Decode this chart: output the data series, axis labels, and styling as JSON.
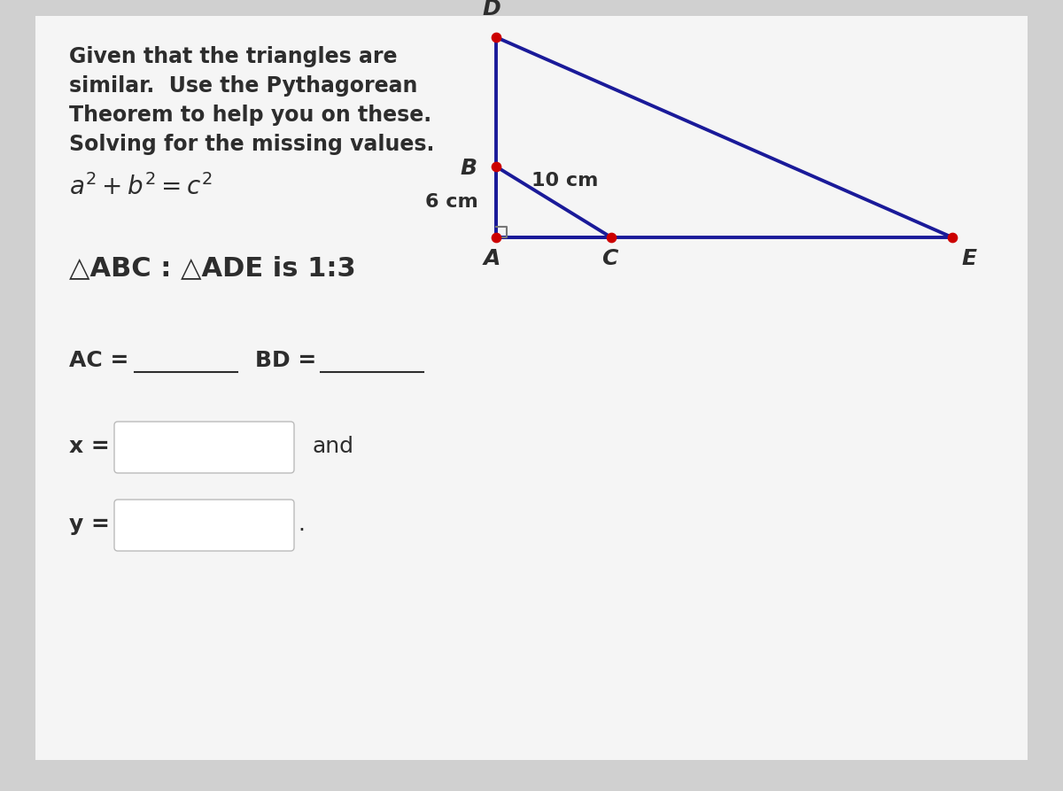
{
  "bg_color": "#d0d0d0",
  "card_color": "#f5f5f5",
  "text_color": "#2d2d2d",
  "line_color": "#1a1a99",
  "dot_color": "#cc0000",
  "text1": "Given that the triangles are",
  "text2": "similar.  Use the Pythagorean",
  "text3": "Theorem to help you on these.",
  "text4": "Solving for the missing values.",
  "formula": "$a^2 + b^2 = c^2$",
  "ratio_text": "△ABC : △ADE is 1:3",
  "ac_label": "AC = ",
  "bd_label": "BD = ",
  "x_label": "x =",
  "y_label": "y =",
  "and_text": "and",
  "period_text": ".",
  "dim_6cm": "6 cm",
  "dim_10cm": "10 cm",
  "label_A": "A",
  "label_B": "B",
  "label_C": "C",
  "label_D": "D",
  "label_E": "E",
  "A": [
    560,
    268
  ],
  "B": [
    560,
    188
  ],
  "C": [
    690,
    268
  ],
  "D": [
    560,
    42
  ],
  "E": [
    1075,
    268
  ]
}
